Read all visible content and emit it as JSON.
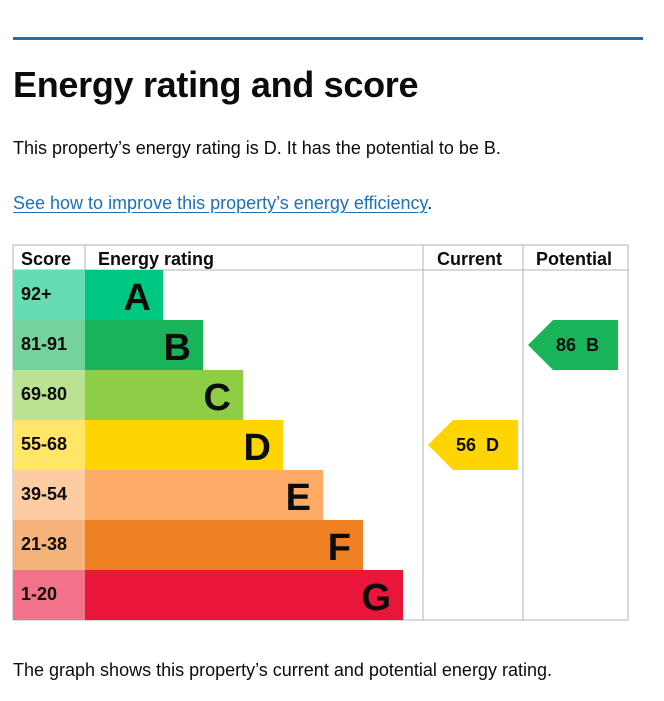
{
  "heading": "Energy rating and score",
  "summary": "This property’s energy rating is D. It has the potential to be B.",
  "improve_link": {
    "label": "See how to improve this property’s energy efficiency",
    "trailing": "."
  },
  "chart_data": {
    "type": "bar",
    "title": "Energy rating and score",
    "headers": {
      "score": "Score",
      "rating": "Energy rating",
      "current": "Current",
      "potential": "Potential"
    },
    "bands": [
      {
        "letter": "A",
        "score_range": "92+",
        "color": "#00c781",
        "score_bg": "#66dcb3"
      },
      {
        "letter": "B",
        "score_range": "81-91",
        "color": "#19b459",
        "score_bg": "#75d29b"
      },
      {
        "letter": "C",
        "score_range": "69-80",
        "color": "#8dce46",
        "score_bg": "#bbe290"
      },
      {
        "letter": "D",
        "score_range": "55-68",
        "color": "#ffd500",
        "score_bg": "#ffe666"
      },
      {
        "letter": "E",
        "score_range": "39-54",
        "color": "#fcaa65",
        "score_bg": "#fdcca3"
      },
      {
        "letter": "F",
        "score_range": "21-38",
        "color": "#ef8023",
        "score_bg": "#f5b37b"
      },
      {
        "letter": "G",
        "score_range": "1-20",
        "color": "#e9153b",
        "score_bg": "#f27389"
      }
    ],
    "current": {
      "score": 56,
      "letter": "D",
      "label": "56  D",
      "color": "#ffd500"
    },
    "potential": {
      "score": 86,
      "letter": "B",
      "label": "86  B",
      "color": "#19b459"
    }
  },
  "footnote": "The graph shows this property’s current and potential energy rating."
}
